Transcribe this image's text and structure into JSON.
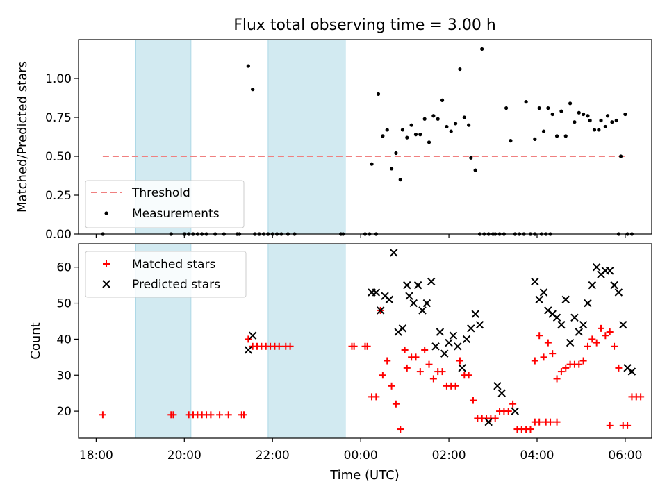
{
  "title": "Flux total observing time = 3.00 h",
  "xlabel": "Time (UTC)",
  "x_tick_labels": [
    "18:00",
    "20:00",
    "22:00",
    "00:00",
    "02:00",
    "04:00",
    "06:00"
  ],
  "colors": {
    "threshold": "#f08080",
    "measurements": "#000000",
    "matched": "#ff0000",
    "predicted": "#000000",
    "shade": "#add8e6"
  },
  "chart_data": [
    {
      "type": "scatter",
      "ylabel": "Matched/Predicted stars",
      "x_unit": "hours since 18:00 UTC",
      "xlim": [
        -0.4,
        12.6
      ],
      "ylim": [
        0.0,
        1.25
      ],
      "y_tick_labels": [
        "0.00",
        "0.25",
        "0.50",
        "0.75",
        "1.00"
      ],
      "y_ticks": [
        0,
        0.25,
        0.5,
        0.75,
        1.0
      ],
      "legend": {
        "position": "lower-left",
        "entries": [
          "Threshold",
          "Measurements"
        ]
      },
      "shaded_intervals": [
        [
          0.9,
          2.15
        ],
        [
          3.9,
          5.65
        ]
      ],
      "threshold": {
        "name": "Threshold",
        "value": 0.5,
        "x_range": [
          0.15,
          12.0
        ]
      },
      "series": [
        {
          "name": "Measurements",
          "points": [
            [
              0.15,
              0.0
            ],
            [
              1.7,
              0.0
            ],
            [
              2.0,
              0.0
            ],
            [
              2.1,
              0.0
            ],
            [
              2.2,
              0.0
            ],
            [
              2.3,
              0.0
            ],
            [
              2.4,
              0.0
            ],
            [
              2.5,
              0.0
            ],
            [
              2.7,
              0.0
            ],
            [
              2.9,
              0.0
            ],
            [
              3.2,
              0.0
            ],
            [
              3.25,
              0.0
            ],
            [
              3.45,
              1.08
            ],
            [
              3.55,
              0.93
            ],
            [
              3.6,
              0.0
            ],
            [
              3.7,
              0.0
            ],
            [
              3.8,
              0.0
            ],
            [
              3.9,
              0.0
            ],
            [
              4.0,
              0.0
            ],
            [
              4.1,
              0.0
            ],
            [
              4.2,
              0.0
            ],
            [
              4.35,
              0.0
            ],
            [
              4.5,
              0.0
            ],
            [
              5.55,
              0.0
            ],
            [
              5.6,
              0.0
            ],
            [
              6.1,
              0.0
            ],
            [
              6.2,
              0.0
            ],
            [
              6.25,
              0.45
            ],
            [
              6.35,
              0.0
            ],
            [
              6.4,
              0.9
            ],
            [
              6.5,
              0.63
            ],
            [
              6.6,
              0.67
            ],
            [
              6.7,
              0.42
            ],
            [
              6.8,
              0.52
            ],
            [
              6.9,
              0.35
            ],
            [
              6.95,
              0.67
            ],
            [
              7.05,
              0.62
            ],
            [
              7.15,
              0.7
            ],
            [
              7.25,
              0.64
            ],
            [
              7.35,
              0.64
            ],
            [
              7.45,
              0.74
            ],
            [
              7.55,
              0.59
            ],
            [
              7.65,
              0.76
            ],
            [
              7.75,
              0.74
            ],
            [
              7.85,
              0.86
            ],
            [
              7.95,
              0.69
            ],
            [
              8.05,
              0.66
            ],
            [
              8.15,
              0.71
            ],
            [
              8.25,
              1.06
            ],
            [
              8.35,
              0.75
            ],
            [
              8.45,
              0.7
            ],
            [
              8.5,
              0.49
            ],
            [
              8.6,
              0.41
            ],
            [
              8.7,
              0.0
            ],
            [
              8.8,
              0.0
            ],
            [
              8.9,
              0.0
            ],
            [
              9.0,
              0.0
            ],
            [
              9.05,
              0.0
            ],
            [
              8.75,
              1.19
            ],
            [
              9.15,
              0.0
            ],
            [
              9.25,
              0.0
            ],
            [
              9.3,
              0.81
            ],
            [
              9.4,
              0.6
            ],
            [
              9.5,
              0.0
            ],
            [
              9.6,
              0.0
            ],
            [
              9.7,
              0.0
            ],
            [
              9.75,
              0.85
            ],
            [
              9.85,
              0.0
            ],
            [
              9.95,
              0.0
            ],
            [
              10.1,
              0.0
            ],
            [
              10.2,
              0.0
            ],
            [
              10.3,
              0.0
            ],
            [
              9.95,
              0.61
            ],
            [
              10.05,
              0.81
            ],
            [
              10.15,
              0.66
            ],
            [
              10.25,
              0.81
            ],
            [
              10.35,
              0.77
            ],
            [
              10.45,
              0.63
            ],
            [
              10.55,
              0.79
            ],
            [
              10.65,
              0.63
            ],
            [
              10.75,
              0.84
            ],
            [
              10.85,
              0.72
            ],
            [
              10.95,
              0.78
            ],
            [
              11.05,
              0.77
            ],
            [
              11.15,
              0.76
            ],
            [
              11.2,
              0.73
            ],
            [
              11.3,
              0.67
            ],
            [
              11.4,
              0.67
            ],
            [
              11.45,
              0.73
            ],
            [
              11.55,
              0.69
            ],
            [
              11.6,
              0.76
            ],
            [
              11.7,
              0.72
            ],
            [
              11.8,
              0.73
            ],
            [
              11.9,
              0.5
            ],
            [
              11.85,
              0.0
            ],
            [
              12.0,
              0.77
            ],
            [
              12.05,
              0.0
            ],
            [
              12.15,
              0.0
            ]
          ]
        }
      ]
    },
    {
      "type": "scatter",
      "ylabel": "Count",
      "x_unit": "hours since 18:00 UTC",
      "xlim": [
        -0.4,
        12.6
      ],
      "ylim": [
        12.5,
        66.5
      ],
      "y_tick_labels": [
        "20",
        "30",
        "40",
        "50",
        "60"
      ],
      "y_ticks": [
        20,
        30,
        40,
        50,
        60
      ],
      "legend": {
        "position": "top-left",
        "entries": [
          "Matched stars",
          "Predicted stars"
        ]
      },
      "shaded_intervals": [
        [
          0.9,
          2.15
        ],
        [
          3.9,
          5.65
        ]
      ],
      "series": [
        {
          "name": "Matched stars",
          "points": [
            [
              0.15,
              19
            ],
            [
              1.7,
              19
            ],
            [
              1.75,
              19
            ],
            [
              2.1,
              19
            ],
            [
              2.2,
              19
            ],
            [
              2.3,
              19
            ],
            [
              2.4,
              19
            ],
            [
              2.5,
              19
            ],
            [
              2.6,
              19
            ],
            [
              2.8,
              19
            ],
            [
              3.0,
              19
            ],
            [
              3.3,
              19
            ],
            [
              3.35,
              19
            ],
            [
              3.45,
              40
            ],
            [
              3.55,
              38
            ],
            [
              3.65,
              38
            ],
            [
              3.75,
              38
            ],
            [
              3.85,
              38
            ],
            [
              3.95,
              38
            ],
            [
              4.05,
              38
            ],
            [
              4.15,
              38
            ],
            [
              4.3,
              38
            ],
            [
              4.4,
              38
            ],
            [
              5.8,
              38
            ],
            [
              5.85,
              38
            ],
            [
              6.1,
              38
            ],
            [
              6.15,
              38
            ],
            [
              6.25,
              24
            ],
            [
              6.35,
              24
            ],
            [
              6.45,
              48
            ],
            [
              6.5,
              30
            ],
            [
              6.6,
              34
            ],
            [
              6.7,
              27
            ],
            [
              6.8,
              22
            ],
            [
              6.9,
              15
            ],
            [
              7.0,
              37
            ],
            [
              7.05,
              32
            ],
            [
              7.15,
              35
            ],
            [
              7.25,
              35
            ],
            [
              7.35,
              31
            ],
            [
              7.45,
              37
            ],
            [
              7.55,
              33
            ],
            [
              7.65,
              29
            ],
            [
              7.75,
              31
            ],
            [
              7.85,
              31
            ],
            [
              7.95,
              27
            ],
            [
              8.05,
              27
            ],
            [
              8.15,
              27
            ],
            [
              8.25,
              34
            ],
            [
              8.35,
              30
            ],
            [
              8.45,
              30
            ],
            [
              8.55,
              23
            ],
            [
              8.65,
              18
            ],
            [
              8.75,
              18
            ],
            [
              8.85,
              18
            ],
            [
              8.95,
              18
            ],
            [
              9.05,
              18
            ],
            [
              9.15,
              20
            ],
            [
              9.25,
              20
            ],
            [
              9.35,
              20
            ],
            [
              9.45,
              22
            ],
            [
              9.55,
              15
            ],
            [
              9.65,
              15
            ],
            [
              9.75,
              15
            ],
            [
              9.85,
              15
            ],
            [
              9.95,
              17
            ],
            [
              10.05,
              17
            ],
            [
              10.2,
              17
            ],
            [
              10.3,
              17
            ],
            [
              10.45,
              17
            ],
            [
              9.95,
              34
            ],
            [
              10.05,
              41
            ],
            [
              10.15,
              35
            ],
            [
              10.25,
              39
            ],
            [
              10.35,
              36
            ],
            [
              10.45,
              29
            ],
            [
              10.55,
              31
            ],
            [
              10.65,
              32
            ],
            [
              10.75,
              33
            ],
            [
              10.85,
              33
            ],
            [
              10.95,
              33
            ],
            [
              11.05,
              34
            ],
            [
              11.15,
              38
            ],
            [
              11.25,
              40
            ],
            [
              11.35,
              39
            ],
            [
              11.45,
              43
            ],
            [
              11.55,
              41
            ],
            [
              11.65,
              42
            ],
            [
              11.75,
              38
            ],
            [
              11.85,
              32
            ],
            [
              11.95,
              16
            ],
            [
              12.05,
              16
            ],
            [
              12.15,
              24
            ],
            [
              12.25,
              24
            ],
            [
              12.35,
              24
            ],
            [
              11.65,
              16
            ]
          ]
        },
        {
          "name": "Predicted stars",
          "points": [
            [
              3.45,
              37
            ],
            [
              3.55,
              41
            ],
            [
              6.25,
              53
            ],
            [
              6.35,
              53
            ],
            [
              6.45,
              48
            ],
            [
              6.55,
              52
            ],
            [
              6.65,
              51
            ],
            [
              6.75,
              64
            ],
            [
              6.85,
              42
            ],
            [
              6.95,
              43
            ],
            [
              7.05,
              55
            ],
            [
              7.1,
              52
            ],
            [
              7.2,
              50
            ],
            [
              7.3,
              55
            ],
            [
              7.4,
              48
            ],
            [
              7.5,
              50
            ],
            [
              7.6,
              56
            ],
            [
              7.7,
              38
            ],
            [
              7.8,
              42
            ],
            [
              7.9,
              36
            ],
            [
              8.0,
              39
            ],
            [
              8.1,
              41
            ],
            [
              8.2,
              38
            ],
            [
              8.3,
              32
            ],
            [
              8.4,
              40
            ],
            [
              8.5,
              43
            ],
            [
              8.6,
              47
            ],
            [
              8.7,
              44
            ],
            [
              8.9,
              17
            ],
            [
              9.1,
              27
            ],
            [
              9.2,
              25
            ],
            [
              9.5,
              20
            ],
            [
              9.95,
              56
            ],
            [
              10.05,
              51
            ],
            [
              10.15,
              53
            ],
            [
              10.25,
              48
            ],
            [
              10.35,
              47
            ],
            [
              10.45,
              46
            ],
            [
              10.55,
              44
            ],
            [
              10.65,
              51
            ],
            [
              10.75,
              39
            ],
            [
              10.85,
              46
            ],
            [
              10.95,
              42
            ],
            [
              11.05,
              44
            ],
            [
              11.15,
              50
            ],
            [
              11.25,
              55
            ],
            [
              11.35,
              60
            ],
            [
              11.45,
              58
            ],
            [
              11.55,
              59
            ],
            [
              11.65,
              59
            ],
            [
              11.75,
              55
            ],
            [
              11.85,
              53
            ],
            [
              11.95,
              44
            ],
            [
              12.05,
              32
            ],
            [
              12.15,
              31
            ]
          ]
        }
      ]
    }
  ]
}
